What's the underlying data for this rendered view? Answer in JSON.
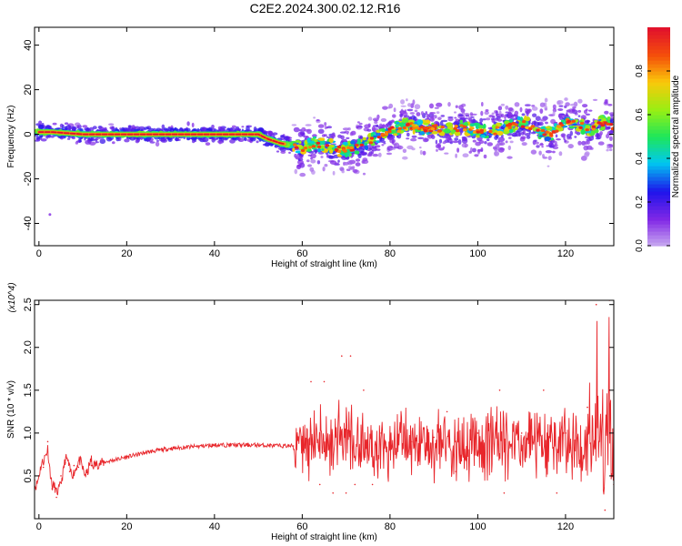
{
  "figure_title": "C2E2.2024.300.02.12.R16",
  "chart_data": [
    {
      "type": "heatmap",
      "title": "C2E2.2024.300.02.12.R16",
      "xlabel": "Height of straight line (km)",
      "ylabel": "Frequency (Hz)",
      "xlim": [
        -1,
        131
      ],
      "ylim": [
        -50,
        48
      ],
      "x_ticks": [
        0,
        20,
        40,
        60,
        80,
        100,
        120
      ],
      "y_ticks": [
        -40,
        -20,
        0,
        20,
        40
      ],
      "x_tick_labels": [
        "0",
        "20",
        "40",
        "60",
        "80",
        "100",
        "120"
      ],
      "y_tick_labels": [
        "-40",
        "-20",
        "0",
        "20",
        "40"
      ],
      "grid": false,
      "colorbar": {
        "label": "Normalized spectral amplitude",
        "range": [
          0,
          1
        ],
        "ticks": [
          0.0,
          0.2,
          0.4,
          0.6,
          0.8
        ],
        "tick_labels": [
          "0.0",
          "0.2",
          "0.4",
          "0.6",
          "0.8"
        ],
        "colormap": "rainbow-purple-to-red"
      },
      "ridge_center": {
        "x": [
          0,
          3,
          10,
          20,
          30,
          40,
          50,
          52,
          55,
          58,
          60,
          63,
          66,
          69,
          72,
          75,
          78,
          81,
          84,
          87,
          90,
          93,
          96,
          99,
          102,
          105,
          108,
          111,
          114,
          117,
          120,
          123,
          126,
          129,
          131
        ],
        "y": [
          1,
          1,
          0,
          0,
          0,
          0,
          0,
          -2,
          -4,
          -5,
          -6,
          -4,
          -5,
          -7,
          -6,
          -4,
          0,
          2,
          4,
          3,
          3,
          2,
          3,
          2,
          1,
          2,
          4,
          5,
          1,
          0,
          6,
          4,
          2,
          6,
          3
        ]
      }
    },
    {
      "type": "line",
      "xlabel": "Height of straight line (km)",
      "ylabel": "SNR (10 * v/v)",
      "y_multiplier": "(x10^4)",
      "xlim": [
        -1,
        131
      ],
      "ylim": [
        0,
        2.55
      ],
      "x_ticks": [
        0,
        20,
        40,
        60,
        80,
        100,
        120
      ],
      "y_ticks": [
        0.5,
        1.0,
        1.5,
        2.0,
        2.5
      ],
      "x_tick_labels": [
        "0",
        "20",
        "40",
        "60",
        "80",
        "100",
        "120"
      ],
      "y_tick_labels": [
        "0.5",
        "1.0",
        "1.5",
        "2.0",
        "2.5"
      ],
      "color": "#e8262b",
      "grid": false,
      "series": [
        {
          "x": [
            -1,
            0,
            1,
            2,
            3,
            4,
            5,
            6,
            7,
            8,
            9,
            10,
            12,
            15,
            20,
            25,
            30,
            35,
            40,
            45,
            50,
            55,
            58,
            60,
            62,
            64,
            65,
            67,
            69,
            70,
            71,
            72,
            74,
            76,
            78,
            80,
            85,
            90,
            93,
            95,
            100,
            105,
            106,
            110,
            115,
            118,
            120,
            125,
            127,
            129,
            130,
            131
          ],
          "y": [
            0.45,
            0.5,
            0.6,
            0.9,
            0.35,
            0.25,
            0.5,
            0.65,
            0.55,
            0.62,
            0.6,
            0.58,
            0.62,
            0.66,
            0.72,
            0.78,
            0.82,
            0.84,
            0.86,
            0.86,
            0.86,
            0.85,
            0.85,
            0.9,
            1.6,
            0.4,
            1.6,
            0.3,
            1.9,
            0.3,
            1.9,
            0.4,
            1.5,
            0.4,
            1.0,
            0.8,
            0.9,
            0.95,
            1.25,
            0.55,
            1.0,
            1.5,
            0.3,
            1.0,
            1.5,
            0.3,
            1.0,
            1.3,
            2.5,
            0.1,
            2.55,
            0.4
          ]
        }
      ]
    }
  ]
}
